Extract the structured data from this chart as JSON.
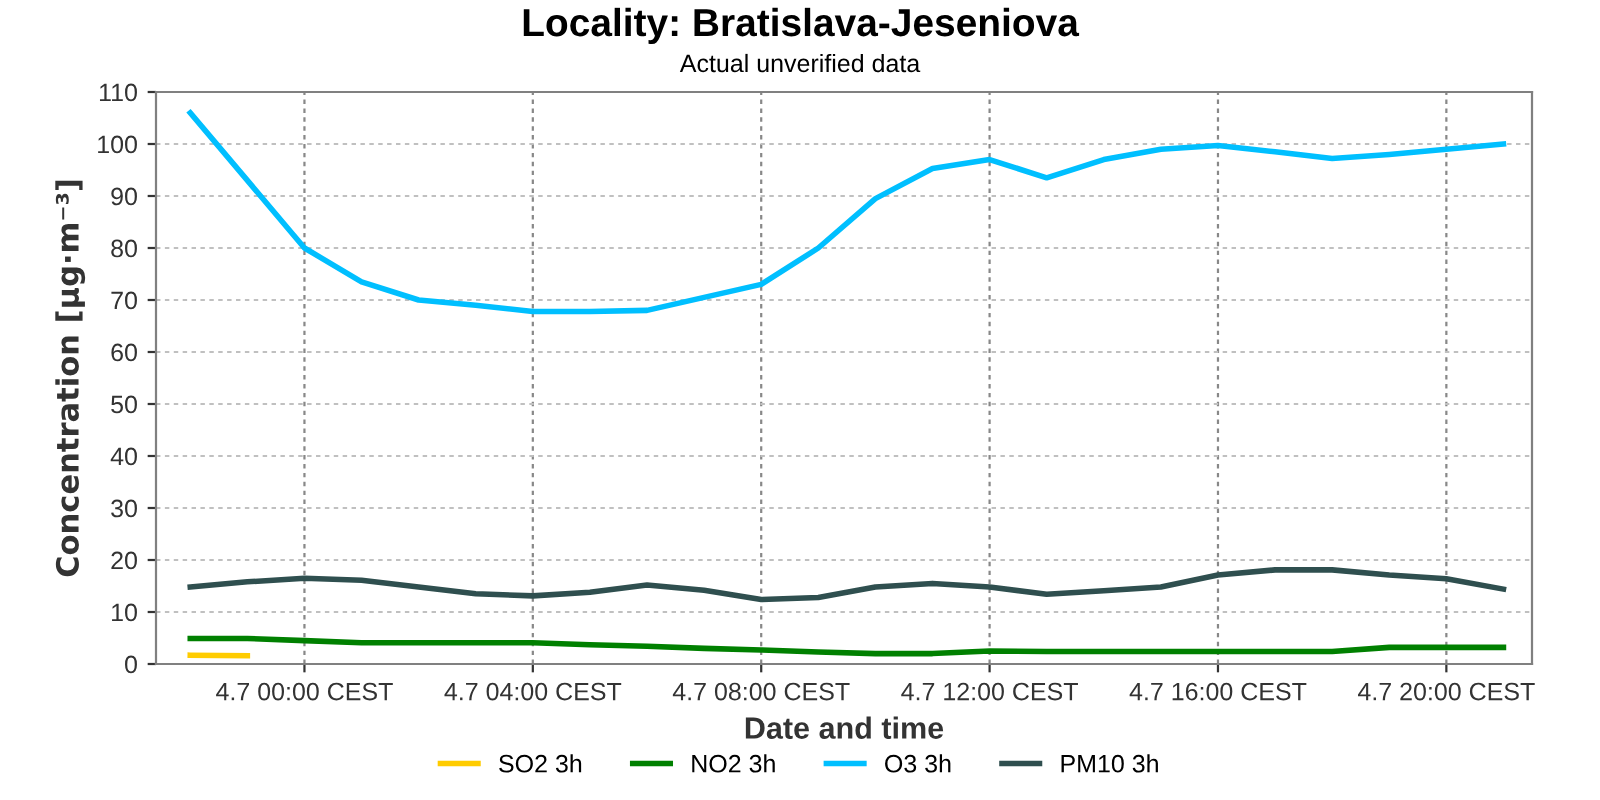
{
  "chart_data": {
    "type": "line",
    "title": "Locality: Bratislava-Jeseniova",
    "subtitle": "Actual unverified data",
    "xlabel": "Date and time",
    "ylabel": "Concentration [µg·m⁻³]",
    "categories": [
      null,
      null,
      "4.7 00:00 CEST",
      null,
      null,
      null,
      "4.7 04:00 CEST",
      null,
      null,
      null,
      "4.7 08:00 CEST",
      null,
      null,
      null,
      "4.7 12:00 CEST",
      null,
      null,
      null,
      "4.7 16:00 CEST",
      null,
      null,
      null,
      "4.7 20:00 CEST",
      null
    ],
    "ylim": [
      0,
      110
    ],
    "yticks": [
      0,
      10,
      20,
      30,
      40,
      50,
      60,
      70,
      80,
      90,
      100,
      110
    ],
    "grid": true,
    "legend": "bottom",
    "marker": "none",
    "line_style": "solid",
    "series": [
      {
        "name": "SO2 3h",
        "color": "#ffcc00",
        "values": [
          1.7,
          1.6,
          null,
          null,
          null,
          null,
          null,
          null,
          null,
          null,
          null,
          null,
          null,
          null,
          null,
          null,
          null,
          null,
          null,
          null,
          null,
          null,
          null,
          null
        ]
      },
      {
        "name": "NO2 3h",
        "color": "#008000",
        "values": [
          4.9,
          4.9,
          4.5,
          4.1,
          4.1,
          4.1,
          4.1,
          3.7,
          3.4,
          3.0,
          2.7,
          2.3,
          2.0,
          2.0,
          2.5,
          2.4,
          2.4,
          2.4,
          2.4,
          2.4,
          2.4,
          3.2,
          3.2,
          3.2
        ]
      },
      {
        "name": "O3 3h",
        "color": "#00bfff",
        "values": [
          106,
          93,
          80,
          73.5,
          70,
          69,
          67.8,
          67.8,
          68,
          70.5,
          73,
          80,
          89.5,
          95.3,
          97,
          93.5,
          97,
          99,
          99.7,
          98.5,
          97.2,
          98,
          99,
          100
        ]
      },
      {
        "name": "PM10 3h",
        "color": "#2f4f4f",
        "values": [
          14.8,
          15.8,
          16.5,
          16.1,
          14.8,
          13.5,
          13.1,
          13.8,
          15.2,
          14.2,
          12.4,
          12.8,
          14.8,
          15.5,
          14.8,
          13.4,
          14.1,
          14.8,
          17.1,
          18.1,
          18.1,
          17.1,
          16.4,
          14.4
        ]
      }
    ]
  }
}
